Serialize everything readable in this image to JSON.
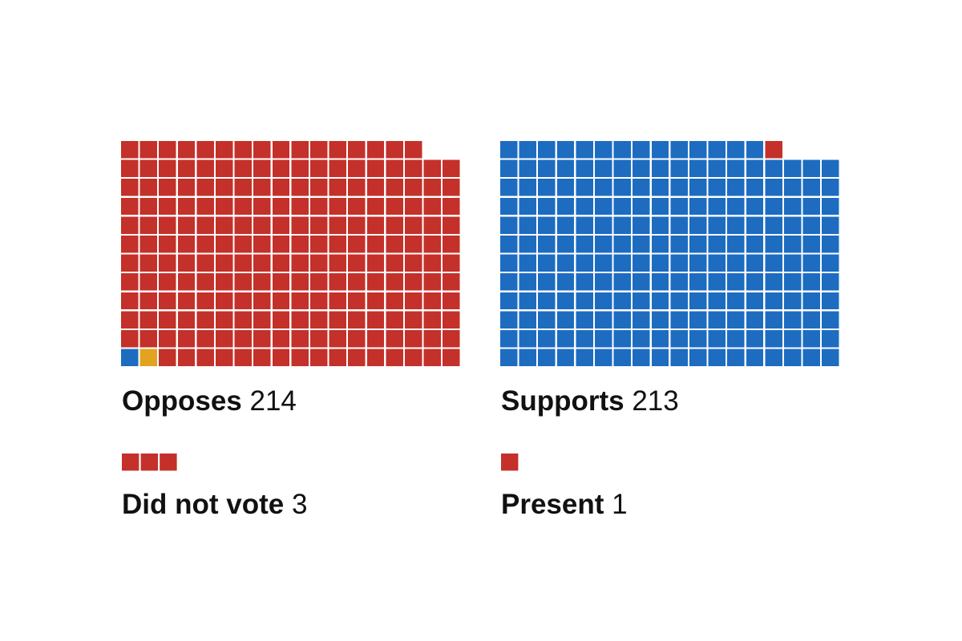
{
  "colors": {
    "opposes": "#c4302a",
    "supports": "#1d6cc0",
    "blue_cell": "#1d6cc0",
    "independent": "#e3a320"
  },
  "chart_data": [
    {
      "type": "waffle",
      "group": "opposes",
      "label": "Opposes",
      "value": 214,
      "columns": 18,
      "cells_by_color": [
        {
          "color": "blue_cell",
          "count": 1
        },
        {
          "color": "independent",
          "count": 1
        },
        {
          "color": "opposes",
          "count": 212
        }
      ]
    },
    {
      "type": "waffle",
      "group": "supports",
      "label": "Supports",
      "value": 213,
      "columns": 18,
      "cells_by_color": [
        {
          "color": "supports",
          "count": 212
        },
        {
          "color": "opposes",
          "count": 1
        }
      ]
    },
    {
      "type": "waffle",
      "group": "did_not_vote",
      "label": "Did not vote",
      "value": 3,
      "cells_by_color": [
        {
          "color": "opposes",
          "count": 3
        }
      ]
    },
    {
      "type": "waffle",
      "group": "present",
      "label": "Present",
      "value": 1,
      "cells_by_color": [
        {
          "color": "opposes",
          "count": 1
        }
      ]
    }
  ]
}
